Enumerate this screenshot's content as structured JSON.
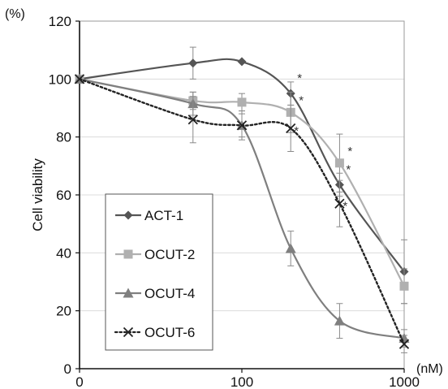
{
  "chart_data": {
    "type": "line",
    "title": "",
    "xlabel": "",
    "x_unit": "(nM)",
    "ylabel": "Cell viability",
    "y_unit": "(%)",
    "x_scale": "log",
    "ylim": [
      0,
      120
    ],
    "y_ticks": [
      "0",
      "20",
      "40",
      "60",
      "80",
      "100",
      "120"
    ],
    "x_ticks": [
      {
        "value": 0,
        "label": "0"
      },
      {
        "value": 100,
        "label": "100"
      },
      {
        "value": 1000,
        "label": "1000"
      }
    ],
    "grid": "horizontal",
    "legend_position": "left-middle",
    "annotation_symbol": "*",
    "series": [
      {
        "name": "ACT-1",
        "color": "#555555",
        "marker": "diamond",
        "style": "solid",
        "x": [
          0,
          50,
          100,
          200,
          400,
          1000
        ],
        "values": [
          100,
          105.5,
          106,
          95,
          63.5,
          33.5
        ],
        "error": [
          0,
          5.5,
          0,
          4,
          4,
          11
        ],
        "asterisks": [
          false,
          false,
          false,
          true,
          true,
          false
        ]
      },
      {
        "name": "OCUT-2",
        "color": "#b0b0b0",
        "marker": "square",
        "style": "solid",
        "x": [
          0,
          50,
          100,
          200,
          400,
          1000
        ],
        "values": [
          100,
          92.5,
          92,
          88.5,
          71,
          28.5
        ],
        "error": [
          0,
          3,
          3,
          7,
          10,
          6
        ],
        "asterisks": [
          false,
          false,
          false,
          true,
          true,
          false
        ]
      },
      {
        "name": "OCUT-4",
        "color": "#7f7f7f",
        "marker": "triangle",
        "style": "solid",
        "x": [
          0,
          50,
          100,
          200,
          400,
          1000
        ],
        "values": [
          100,
          91.5,
          84,
          41.5,
          16.5,
          10.5
        ],
        "error": [
          0,
          4,
          4,
          6,
          6,
          3
        ],
        "asterisks": [
          false,
          false,
          false,
          false,
          false,
          false
        ]
      },
      {
        "name": "OCUT-6",
        "color": "#222222",
        "marker": "x",
        "style": "dotted",
        "x": [
          0,
          50,
          100,
          200,
          400,
          1000
        ],
        "values": [
          100,
          86,
          84,
          83,
          57,
          8.5
        ],
        "error": [
          0,
          8,
          5,
          8,
          8,
          3
        ],
        "asterisks": [
          false,
          false,
          false,
          true,
          true,
          false
        ]
      }
    ]
  }
}
